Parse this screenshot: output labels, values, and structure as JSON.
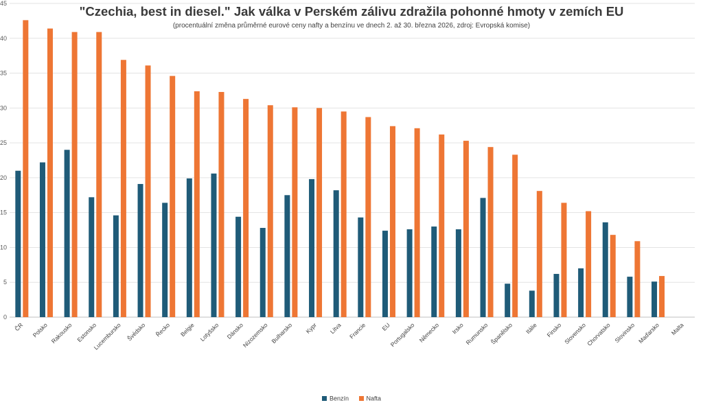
{
  "chart_data": {
    "type": "bar",
    "title": "\"Czechia, best in diesel.\" Jak válka v Perském zálivu zdražila pohonné hmoty v zemích EU",
    "subtitle": "(procentuální změna průměrné eurové ceny nafty a benzínu ve dnech 2. až 30. března 2026, zdroj: Evropská komise)",
    "categories": [
      "ČR",
      "Polsko",
      "Rakousko",
      "Estonsko",
      "Lucembursko",
      "Švédsko",
      "Řecko",
      "Belgie",
      "Lotyšsko",
      "Dánsko",
      "Nizozemsko",
      "Bulharsko",
      "Kypr",
      "Litva",
      "Francie",
      "EU",
      "Portugalsko",
      "Německo",
      "Irsko",
      "Rumunsko",
      "Španělsko",
      "Itálie",
      "Finsko",
      "Slovensko",
      "Chorvatsko",
      "Slovinsko",
      "Maďarsko",
      "Malta"
    ],
    "series": [
      {
        "name": "Benzín",
        "color": "#1f5b78",
        "values": [
          21.0,
          22.2,
          24.0,
          17.2,
          14.6,
          19.1,
          16.4,
          19.9,
          20.6,
          14.4,
          12.8,
          17.5,
          19.8,
          18.2,
          14.3,
          12.4,
          12.6,
          13.0,
          12.6,
          17.1,
          4.8,
          3.8,
          6.2,
          7.0,
          13.6,
          5.8,
          5.1,
          0
        ]
      },
      {
        "name": "Nafta",
        "color": "#ee7634",
        "values": [
          42.6,
          41.4,
          40.9,
          40.9,
          36.9,
          36.1,
          34.6,
          32.4,
          32.3,
          31.3,
          30.4,
          30.1,
          30.0,
          29.5,
          28.7,
          27.4,
          27.1,
          26.2,
          25.3,
          24.4,
          23.3,
          18.1,
          16.4,
          15.2,
          11.8,
          10.9,
          5.9,
          0
        ]
      }
    ],
    "ylim": [
      0,
      45
    ],
    "yticks": [
      0,
      5,
      10,
      15,
      20,
      25,
      30,
      35,
      40,
      45
    ],
    "grid": true,
    "legend_position": "bottom"
  }
}
